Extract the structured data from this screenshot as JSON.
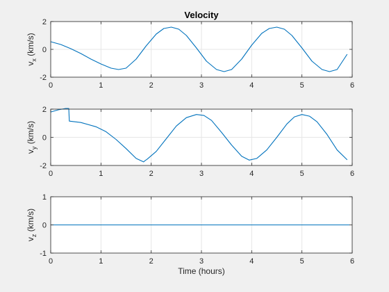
{
  "figure": {
    "title": "Velocity",
    "xlabel": "Time (hours)"
  },
  "colors": {
    "series": "#0072bd",
    "axes_bg": "#ffffff",
    "figure_bg": "#f0f0f0",
    "grid": "#e6e6e6",
    "axis": "#262626"
  },
  "chart_data": [
    {
      "type": "line",
      "title": "Velocity",
      "xlabel": "",
      "ylabel_main": "v",
      "ylabel_sub": "x",
      "ylabel_unit": " (km/s)",
      "xlim": [
        0,
        6
      ],
      "ylim": [
        -2,
        2
      ],
      "xticks": [
        0,
        1,
        2,
        3,
        4,
        5,
        6
      ],
      "yticks": [
        -2,
        0,
        2
      ],
      "grid": true,
      "series": [
        {
          "x": [
            0,
            0.2,
            0.4,
            0.6,
            0.8,
            1.0,
            1.2,
            1.35,
            1.5,
            1.7,
            1.9,
            2.1,
            2.25,
            2.4,
            2.55,
            2.7,
            2.9,
            3.1,
            3.3,
            3.45,
            3.6,
            3.8,
            4.0,
            4.2,
            4.35,
            4.5,
            4.65,
            4.8,
            5.0,
            5.2,
            5.4,
            5.55,
            5.7,
            5.9
          ],
          "y": [
            0.55,
            0.35,
            0.05,
            -0.3,
            -0.7,
            -1.05,
            -1.35,
            -1.45,
            -1.35,
            -0.7,
            0.25,
            1.1,
            1.5,
            1.6,
            1.45,
            1.0,
            0.1,
            -0.85,
            -1.45,
            -1.6,
            -1.45,
            -0.7,
            0.3,
            1.15,
            1.5,
            1.6,
            1.45,
            1.0,
            0.1,
            -0.85,
            -1.45,
            -1.6,
            -1.45,
            -0.35
          ]
        }
      ]
    },
    {
      "type": "line",
      "xlabel": "",
      "ylabel_main": "v",
      "ylabel_sub": "y",
      "ylabel_unit": " (km/s)",
      "xlim": [
        0,
        6
      ],
      "ylim": [
        -2,
        2
      ],
      "xticks": [
        0,
        1,
        2,
        3,
        4,
        5,
        6
      ],
      "yticks": [
        -2,
        0,
        2
      ],
      "grid": true,
      "series": [
        {
          "x": [
            0,
            0.15,
            0.3,
            0.36,
            0.37,
            0.6,
            0.9,
            1.1,
            1.3,
            1.5,
            1.7,
            1.85,
            1.88,
            1.92,
            2.1,
            2.3,
            2.5,
            2.7,
            2.9,
            3.05,
            3.2,
            3.4,
            3.6,
            3.8,
            3.95,
            4.1,
            4.3,
            4.5,
            4.7,
            4.85,
            5.0,
            5.15,
            5.3,
            5.5,
            5.7,
            5.9
          ],
          "y": [
            1.8,
            1.95,
            2.05,
            2.05,
            1.15,
            1.05,
            0.75,
            0.4,
            -0.15,
            -0.8,
            -1.5,
            -1.75,
            -1.65,
            -1.55,
            -1.0,
            -0.1,
            0.8,
            1.4,
            1.62,
            1.55,
            1.2,
            0.35,
            -0.55,
            -1.35,
            -1.62,
            -1.5,
            -0.9,
            0.0,
            0.95,
            1.45,
            1.62,
            1.5,
            1.1,
            0.2,
            -0.9,
            -1.6
          ]
        }
      ]
    },
    {
      "type": "line",
      "xlabel": "Time (hours)",
      "ylabel_main": "v",
      "ylabel_sub": "z",
      "ylabel_unit": " (km/s)",
      "xlim": [
        0,
        6
      ],
      "ylim": [
        -1,
        1
      ],
      "xticks": [
        0,
        1,
        2,
        3,
        4,
        5,
        6
      ],
      "yticks": [
        -1,
        0,
        1
      ],
      "grid": true,
      "series": [
        {
          "x": [
            0,
            5.95
          ],
          "y": [
            0,
            0
          ]
        }
      ]
    }
  ]
}
